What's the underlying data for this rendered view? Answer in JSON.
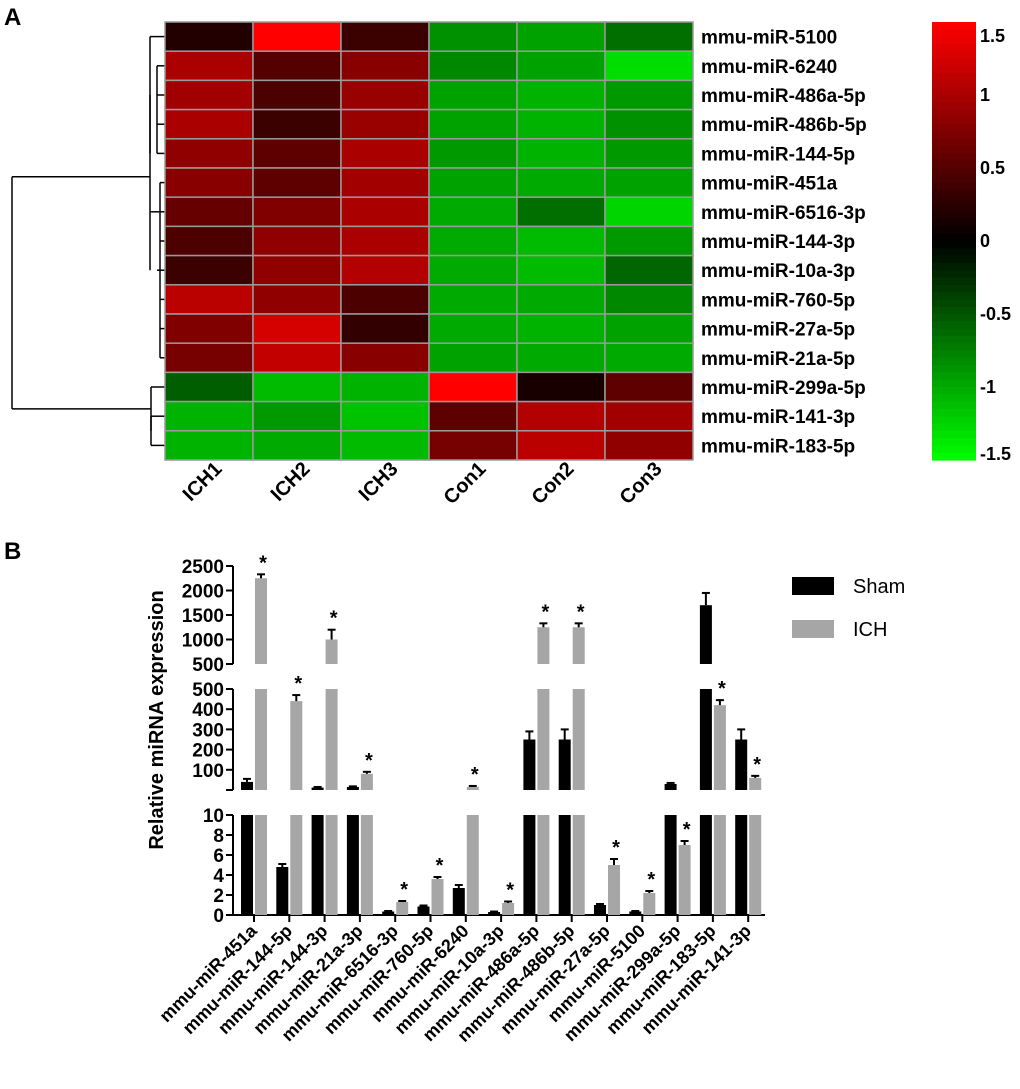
{
  "panels": {
    "a_label": "A",
    "b_label": "B"
  },
  "chart_data": [
    {
      "type": "heatmap",
      "panel": "A",
      "title": "",
      "columns": [
        "ICH1",
        "ICH2",
        "ICH3",
        "Con1",
        "Con2",
        "Con3"
      ],
      "rows": [
        "mmu-miR-5100",
        "mmu-miR-6240",
        "mmu-miR-486a-5p",
        "mmu-miR-486b-5p",
        "mmu-miR-144-5p",
        "mmu-miR-451a",
        "mmu-miR-6516-3p",
        "mmu-miR-144-3p",
        "mmu-miR-10a-3p",
        "mmu-miR-760-5p",
        "mmu-miR-27a-5p",
        "mmu-miR-21a-5p",
        "mmu-miR-299a-5p",
        "mmu-miR-141-3p",
        "mmu-miR-183-5p"
      ],
      "values": [
        [
          0.2,
          1.6,
          0.35,
          -0.85,
          -0.95,
          -0.65
        ],
        [
          1.0,
          0.5,
          0.8,
          -0.8,
          -0.95,
          -1.3
        ],
        [
          0.95,
          0.45,
          0.9,
          -0.95,
          -1.05,
          -0.9
        ],
        [
          1.0,
          0.35,
          0.9,
          -0.95,
          -1.05,
          -0.85
        ],
        [
          0.85,
          0.55,
          1.0,
          -0.9,
          -1.05,
          -0.9
        ],
        [
          0.8,
          0.55,
          0.95,
          -0.95,
          -1.0,
          -0.95
        ],
        [
          0.6,
          0.75,
          1.0,
          -1.0,
          -0.65,
          -1.25
        ],
        [
          0.45,
          0.85,
          1.0,
          -1.0,
          -1.1,
          -0.9
        ],
        [
          0.35,
          0.85,
          1.05,
          -1.0,
          -1.1,
          -0.6
        ],
        [
          1.1,
          0.85,
          0.45,
          -1.0,
          -1.0,
          -0.8
        ],
        [
          0.75,
          1.25,
          0.3,
          -1.0,
          -1.05,
          -0.95
        ],
        [
          0.7,
          1.15,
          0.8,
          -0.95,
          -1.0,
          -1.0
        ],
        [
          -0.55,
          -1.1,
          -1.05,
          1.6,
          0.15,
          0.55
        ],
        [
          -1.05,
          -0.9,
          -1.15,
          0.55,
          1.05,
          0.95
        ],
        [
          -1.05,
          -1.0,
          -1.1,
          0.7,
          1.1,
          0.85
        ]
      ],
      "colorscale": {
        "low": "#00ff00",
        "mid": "#000000",
        "high": "#ff0000",
        "range": [
          -1.5,
          1.5
        ]
      },
      "colorbar_ticks": [
        "1.5",
        "1",
        "0.5",
        "0",
        "-0.5",
        "-1",
        "-1.5"
      ],
      "colorbar_tick_values": [
        1.5,
        1,
        0.5,
        0,
        -0.5,
        -1,
        -1.5
      ],
      "dendrogram": "row clustering tree on left"
    },
    {
      "type": "bar",
      "panel": "B",
      "title": "",
      "ylabel": "Relative miRNA expression",
      "xlabel": "",
      "axis_segments": [
        {
          "range": [
            500,
            2500
          ],
          "ticks": [
            "500",
            "1000",
            "1500",
            "2000",
            "2500"
          ],
          "tick_values": [
            500,
            1000,
            1500,
            2000,
            2500
          ]
        },
        {
          "range": [
            0,
            500
          ],
          "ticks": [
            "100",
            "200",
            "300",
            "400",
            "500"
          ],
          "tick_values": [
            100,
            200,
            300,
            400,
            500
          ]
        },
        {
          "range": [
            0,
            10
          ],
          "ticks": [
            "0",
            "2",
            "4",
            "6",
            "8",
            "10"
          ],
          "tick_values": [
            0,
            2,
            4,
            6,
            8,
            10
          ]
        }
      ],
      "categories": [
        "mmu-miR-451a",
        "mmu-miR-144-5p",
        "mmu-miR-144-3p",
        "mmu-miR-21a-3p",
        "mmu-miR-6516-3p",
        "mmu-miR-760-5p",
        "mmu-miR-6240",
        "mmu-miR-10a-3p",
        "mmu-miR-486a-5p",
        "mmu-miR-486b-5p",
        "mmu-miR-27a-5p",
        "mmu-miR-5100",
        "mmu-miR-299a-5p",
        "mmu-miR-183-5p",
        "mmu-miR-141-3p"
      ],
      "series": [
        {
          "name": "Sham",
          "color": "#000000",
          "values": [
            40,
            4.8,
            12,
            15,
            0.35,
            0.85,
            2.7,
            0.3,
            250,
            250,
            1.0,
            0.35,
            30,
            1700,
            250
          ],
          "errors": [
            15,
            0.3,
            3,
            3,
            0.05,
            0.1,
            0.3,
            0.05,
            40,
            50,
            0.1,
            0.05,
            5,
            250,
            50
          ]
        },
        {
          "name": "ICH",
          "color": "#a6a6a6",
          "values": [
            2250,
            440,
            1000,
            80,
            1.3,
            3.6,
            15,
            1.2,
            1250,
            1250,
            5.0,
            2.2,
            7.0,
            420,
            60
          ],
          "errors": [
            80,
            30,
            200,
            10,
            0.1,
            0.2,
            5,
            0.15,
            80,
            80,
            0.6,
            0.2,
            0.4,
            25,
            10
          ]
        }
      ],
      "significance": [
        "*",
        "*",
        "*",
        "*",
        "*",
        "*",
        "*",
        "*",
        "*",
        "*",
        "*",
        "*",
        "*",
        "*",
        "*"
      ],
      "legend_position": "top-right"
    }
  ]
}
